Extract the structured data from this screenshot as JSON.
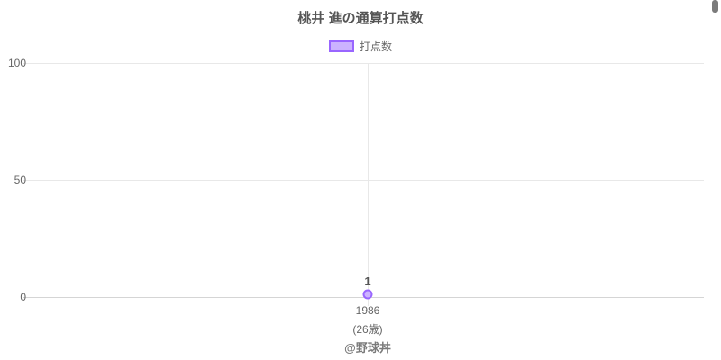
{
  "chart_data": {
    "type": "line",
    "title": "桃井 進の通算打点数",
    "legend": {
      "label": "打点数",
      "position": "top",
      "border_color": "#9966FF",
      "fill_color": "#CCB3FF"
    },
    "categories": [
      "1986"
    ],
    "category_sublabels": [
      "(26歳)"
    ],
    "series": [
      {
        "name": "打点数",
        "values": [
          1
        ]
      }
    ],
    "point_label": "1",
    "ylim": [
      0,
      100
    ],
    "ytick_labels": [
      "0",
      "50",
      "100"
    ],
    "xlabel": "",
    "ylabel": "",
    "grid": true,
    "footer": "@野球丼"
  }
}
